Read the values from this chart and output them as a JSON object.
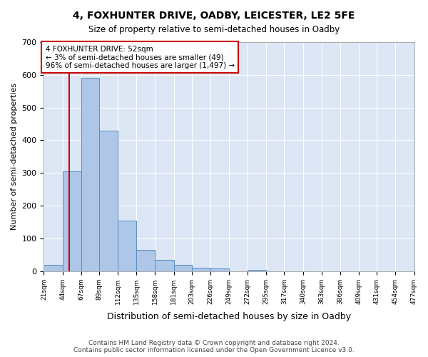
{
  "title": "4, FOXHUNTER DRIVE, OADBY, LEICESTER, LE2 5FE",
  "subtitle": "Size of property relative to semi-detached houses in Oadby",
  "xlabel": "Distribution of semi-detached houses by size in Oadby",
  "ylabel": "Number of semi-detached properties",
  "footer_line1": "Contains HM Land Registry data © Crown copyright and database right 2024.",
  "footer_line2": "Contains public sector information licensed under the Open Government Licence v3.0.",
  "annotation_line1": "4 FOXHUNTER DRIVE: 52sqm",
  "annotation_line2": "← 3% of semi-detached houses are smaller (49)",
  "annotation_line3": "96% of semi-detached houses are larger (1,497) →",
  "bar_color": "#aec6e8",
  "bar_edge_color": "#5a8fc0",
  "property_line_color": "#cc0000",
  "annotation_box_color": "#cc0000",
  "background_color": "#dce6f5",
  "bins": [
    21,
    44,
    67,
    89,
    112,
    135,
    158,
    181,
    203,
    226,
    249,
    272,
    295,
    317,
    340,
    363,
    386,
    409,
    431,
    454,
    477
  ],
  "bin_labels": [
    "21sqm",
    "44sqm",
    "67sqm",
    "89sqm",
    "112sqm",
    "135sqm",
    "158sqm",
    "181sqm",
    "203sqm",
    "226sqm",
    "249sqm",
    "272sqm",
    "295sqm",
    "317sqm",
    "340sqm",
    "363sqm",
    "386sqm",
    "409sqm",
    "431sqm",
    "454sqm",
    "477sqm"
  ],
  "counts": [
    20,
    305,
    590,
    430,
    155,
    65,
    35,
    20,
    10,
    8,
    0,
    5,
    0,
    0,
    0,
    0,
    0,
    0,
    0,
    0
  ],
  "property_size": 52,
  "ylim": [
    0,
    700
  ],
  "yticks": [
    0,
    100,
    200,
    300,
    400,
    500,
    600,
    700
  ]
}
